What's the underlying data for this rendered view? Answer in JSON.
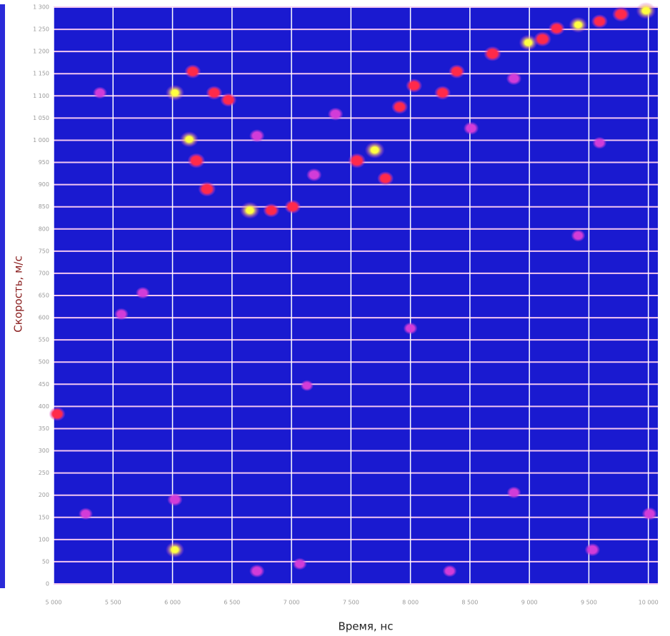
{
  "chart_data": {
    "type": "heatmap",
    "x_label": "Время, нс",
    "y_label": "Скорость, м/с",
    "xlim": [
      5000,
      10080
    ],
    "ylim": [
      0,
      1300
    ],
    "xticks": [
      {
        "value": 5000,
        "label": "5 000"
      },
      {
        "value": 5500,
        "label": "5 500"
      },
      {
        "value": 6000,
        "label": "6 000"
      },
      {
        "value": 6500,
        "label": "6 500"
      },
      {
        "value": 7000,
        "label": "7 000"
      },
      {
        "value": 7500,
        "label": "7 500"
      },
      {
        "value": 8000,
        "label": "8 000"
      },
      {
        "value": 8500,
        "label": "8 500"
      },
      {
        "value": 9000,
        "label": "9 000"
      },
      {
        "value": 9500,
        "label": "9 500"
      },
      {
        "value": 10000,
        "label": "10 000"
      }
    ],
    "yticks": [
      0,
      50,
      100,
      150,
      200,
      250,
      300,
      350,
      400,
      450,
      500,
      550,
      600,
      650,
      700,
      750,
      800,
      850,
      900,
      950,
      {
        "value": 1000,
        "label": "1 000"
      },
      {
        "value": 1050,
        "label": "1 050"
      },
      {
        "value": 1100,
        "label": "1 100"
      },
      {
        "value": 1150,
        "label": "1 150"
      },
      {
        "value": 1200,
        "label": "1 200"
      },
      {
        "value": 1250,
        "label": "1 250"
      },
      {
        "value": 1300,
        "label": "1 300"
      }
    ],
    "grid": true,
    "background_color": "#1a1ad0",
    "colors": [
      "#d23cd8",
      "#ff2a4a",
      "#ffff40"
    ],
    "x": [
      6020,
      6140,
      6200,
      6290,
      6650,
      6830,
      7010,
      6470,
      6350,
      6170,
      6710,
      7190,
      7370,
      7550,
      7700,
      7790,
      7910,
      8030,
      8270,
      8390,
      8510,
      8690,
      8870,
      8990,
      9110,
      9230,
      9410,
      9590,
      9770,
      9980,
      6020,
      6020,
      5030,
      5270,
      5570,
      5750,
      6710,
      7070,
      8000,
      8330,
      8870,
      9530,
      10010,
      9410,
      9590,
      7130,
      5390
    ],
    "y": [
      1107,
      1002,
      954,
      890,
      842,
      842,
      850,
      1091,
      1107,
      1155,
      1010,
      922,
      1059,
      954,
      978,
      914,
      1075,
      1123,
      1107,
      1155,
      1027,
      1195,
      1139,
      1220,
      1228,
      1252,
      1260,
      1268,
      1284,
      1292,
      77,
      190,
      383,
      158,
      608,
      656,
      29,
      45,
      576,
      29,
      206,
      77,
      158,
      785,
      994,
      447,
      1107
    ],
    "values": [
      0.9,
      0.9,
      0.8,
      0.8,
      1.0,
      0.7,
      0.7,
      0.7,
      0.7,
      0.7,
      0.6,
      0.6,
      0.6,
      0.8,
      1.0,
      0.7,
      0.7,
      0.7,
      0.7,
      0.7,
      0.6,
      0.8,
      0.6,
      0.9,
      0.8,
      0.7,
      0.9,
      0.7,
      0.8,
      1.0,
      0.9,
      0.6,
      0.7,
      0.5,
      0.5,
      0.5,
      0.6,
      0.5,
      0.5,
      0.5,
      0.5,
      0.6,
      0.6,
      0.5,
      0.5,
      0.4,
      0.5
    ]
  }
}
